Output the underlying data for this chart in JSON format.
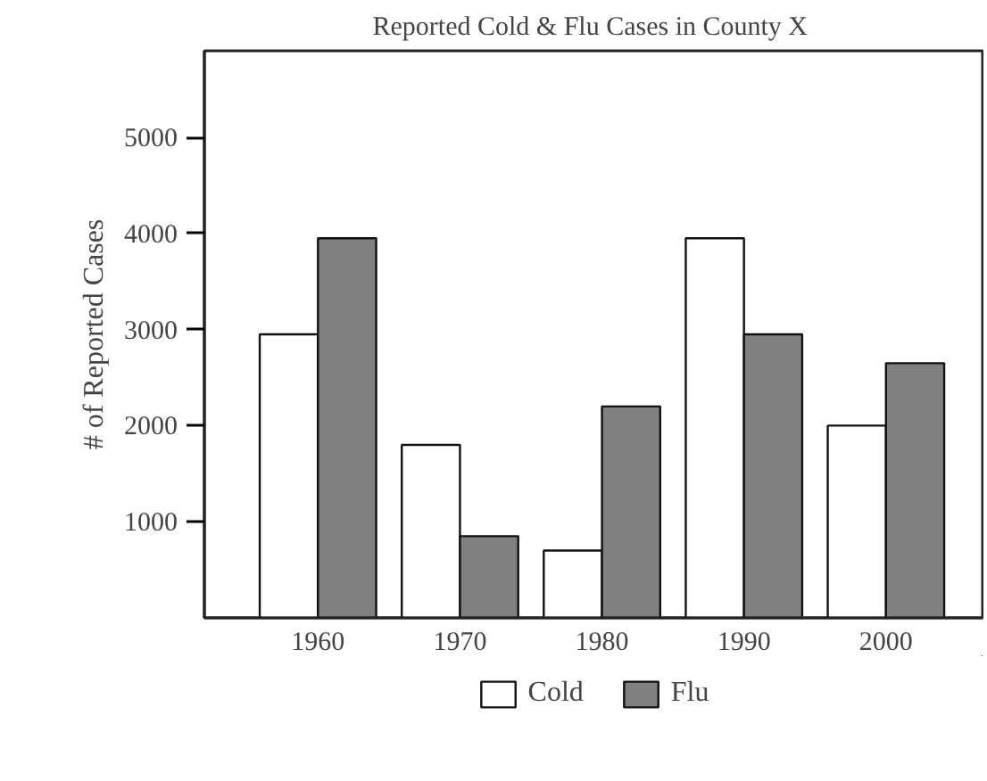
{
  "chart_data": {
    "type": "bar",
    "title": "Reported Cold & Flu Cases  in County X",
    "ylabel": "# of Reported Cases",
    "categories": [
      "1960",
      "1970",
      "1980",
      "1990",
      "2000"
    ],
    "series": [
      {
        "name": "Cold",
        "color": "#ffffff",
        "values": [
          2950,
          1800,
          700,
          3950,
          2000
        ]
      },
      {
        "name": "Flu",
        "color": "#808080",
        "values": [
          3950,
          850,
          2200,
          2950,
          2650
        ]
      }
    ],
    "ylim": [
      0,
      5900
    ],
    "yticks": [
      1000,
      2000,
      3000,
      4000,
      5000
    ],
    "grid": false,
    "legend": "bottom"
  }
}
